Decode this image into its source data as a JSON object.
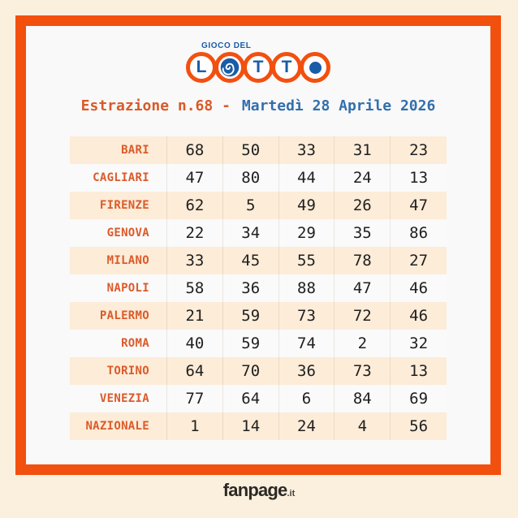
{
  "page": {
    "background_color": "#FBF0DE",
    "frame_color": "#F2500F",
    "card_color": "#F9F9F9"
  },
  "logo": {
    "tagline": "GIOCO DEL",
    "items": [
      {
        "kind": "letter",
        "glyph": "L"
      },
      {
        "kind": "spiral"
      },
      {
        "kind": "letter",
        "glyph": "T"
      },
      {
        "kind": "letter",
        "glyph": "T"
      },
      {
        "kind": "dot"
      }
    ],
    "ring_color": "#F2500F",
    "glyph_color": "#1A5CA8"
  },
  "header": {
    "draw": "Estrazione n.68 -",
    "date": "Martedì 28 Aprile 2026",
    "draw_color": "#D95A28",
    "date_color": "#336FAC"
  },
  "results": {
    "city_color": "#DB5B2A",
    "number_color": "#202020",
    "row_alt_color": "#FCECD8",
    "row_base_color": "#FAFAFA",
    "rows": [
      {
        "city": "BARI",
        "numbers": [
          "68",
          "50",
          "33",
          "31",
          "23"
        ]
      },
      {
        "city": "CAGLIARI",
        "numbers": [
          "47",
          "80",
          "44",
          "24",
          "13"
        ]
      },
      {
        "city": "FIRENZE",
        "numbers": [
          "62",
          "5",
          "49",
          "26",
          "47"
        ]
      },
      {
        "city": "GENOVA",
        "numbers": [
          "22",
          "34",
          "29",
          "35",
          "86"
        ]
      },
      {
        "city": "MILANO",
        "numbers": [
          "33",
          "45",
          "55",
          "78",
          "27"
        ]
      },
      {
        "city": "NAPOLI",
        "numbers": [
          "58",
          "36",
          "88",
          "47",
          "46"
        ]
      },
      {
        "city": "PALERMO",
        "numbers": [
          "21",
          "59",
          "73",
          "72",
          "46"
        ]
      },
      {
        "city": "ROMA",
        "numbers": [
          "40",
          "59",
          "74",
          "2",
          "32"
        ]
      },
      {
        "city": "TORINO",
        "numbers": [
          "64",
          "70",
          "36",
          "73",
          "13"
        ]
      },
      {
        "city": "VENEZIA",
        "numbers": [
          "77",
          "64",
          "6",
          "84",
          "69"
        ]
      },
      {
        "city": "NAZIONALE",
        "numbers": [
          "1",
          "14",
          "24",
          "4",
          "56"
        ]
      }
    ]
  },
  "footer": {
    "brand": "fanpage",
    "suffix": ".it"
  }
}
